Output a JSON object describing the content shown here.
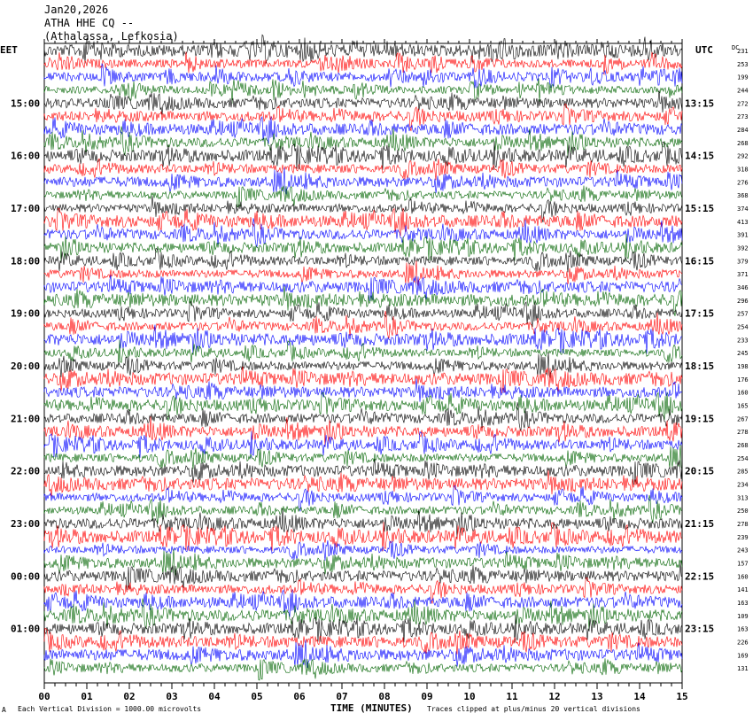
{
  "header": {
    "date": "Jan20,2026",
    "station": "ATHA HHE CQ --",
    "location": "(Athalassa, Lefkosia)"
  },
  "left_axis_label": "EET",
  "right_axis_label": "UTC",
  "dc_header": "DC",
  "footer": {
    "scale_note": "Each Vertical Division = 1000.00 microvolts",
    "xlabel": "TIME (MINUTES)",
    "clip_note": "Traces clipped at plus/minus 20 vertical divisions",
    "corner_mark": "A"
  },
  "colors": {
    "trace_cycle": [
      "#000000",
      "#ff0000",
      "#0000ff",
      "#006400"
    ]
  },
  "chart_data": {
    "type": "line",
    "title": "ATHA HHE CQ --",
    "xlabel": "TIME (MINUTES)",
    "xlim": [
      0,
      15
    ],
    "x_ticks": [
      "00",
      "01",
      "02",
      "03",
      "04",
      "05",
      "06",
      "07",
      "08",
      "09",
      "10",
      "11",
      "12",
      "13",
      "14",
      "15"
    ],
    "left_hour_labels": [
      "15:00",
      "16:00",
      "17:00",
      "18:00",
      "19:00",
      "20:00",
      "21:00",
      "22:00",
      "23:00",
      "00:00",
      "01:00"
    ],
    "right_hour_labels": [
      "13:15",
      "14:15",
      "15:15",
      "16:15",
      "17:15",
      "18:15",
      "19:15",
      "20:15",
      "21:15",
      "22:15",
      "23:15"
    ],
    "trace_count": 48,
    "dc_offsets": [
      231,
      253,
      199,
      244,
      272,
      273,
      284,
      268,
      292,
      318,
      276,
      368,
      374,
      413,
      391,
      392,
      379,
      371,
      346,
      296,
      257,
      254,
      233,
      245,
      198,
      176,
      160,
      165,
      267,
      278,
      268,
      254,
      285,
      234,
      313,
      250,
      278,
      239,
      243,
      157,
      160,
      141,
      163,
      109,
      163,
      226,
      169,
      131
    ]
  }
}
